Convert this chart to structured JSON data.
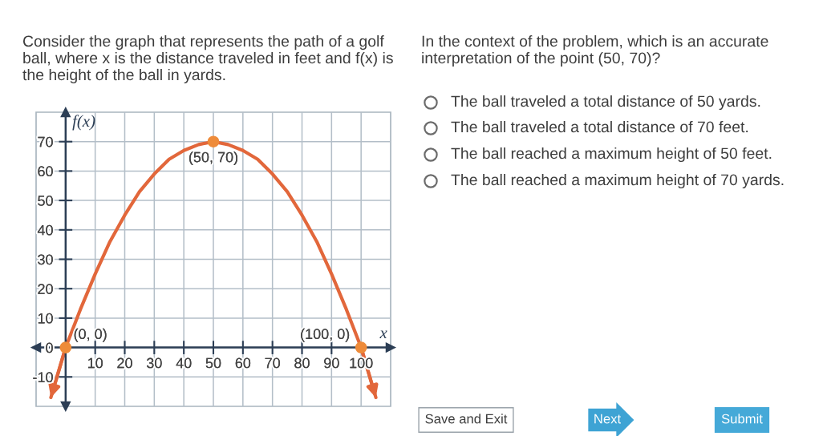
{
  "chart_data": {
    "type": "line",
    "title": "Consider the graph that represents the path of a golf ball, where x is the distance traveled in feet and f(x) is the height of the ball in yards.",
    "subtitle": "In the context of the problem, which is an accurate interpretation of the point (50, 70)?",
    "xlabel": "x",
    "ylabel": "f(x)",
    "series": [
      {
        "color": "#e2673b",
        "x": [
          -5,
          0,
          5,
          10,
          15,
          20,
          25,
          30,
          35,
          40,
          45,
          50,
          55,
          60,
          65,
          70,
          75,
          80,
          85,
          90,
          95,
          100,
          105
        ],
        "values": [
          -17,
          0,
          13,
          25,
          36,
          45,
          53,
          59,
          64,
          67,
          69,
          70,
          69,
          67,
          64,
          59,
          53,
          45,
          36,
          25,
          13,
          0,
          -17
        ]
      },
      {
        "type": "scatter",
        "color": "#ee8b3a",
        "marker": "circle",
        "x": [
          0,
          50,
          100
        ],
        "values": [
          0,
          70,
          0
        ]
      }
    ],
    "xlim": [
      -10,
      110
    ],
    "ylim": [
      -20,
      80
    ],
    "xticks": [
      10,
      20,
      30,
      40,
      50,
      60,
      70,
      80,
      90,
      100
    ],
    "yticks": [
      -10,
      0,
      10,
      20,
      30,
      40,
      50,
      60,
      70
    ],
    "grid": true,
    "annotations": [
      {
        "text": "(0, 0)",
        "x": 0,
        "y": 0
      },
      {
        "text": "(50, 70)",
        "x": 50,
        "y": 70
      },
      {
        "text": "(100, 0)",
        "x": 100,
        "y": 0
      },
      "The ball traveled a total distance of 50 yards.",
      "The ball traveled a total distance of 70 feet.",
      "The ball reached a maximum height of 50 feet.",
      "The ball reached a maximum height of 70 yards.",
      "Save and Exit",
      "Next",
      "Submit"
    ]
  }
}
